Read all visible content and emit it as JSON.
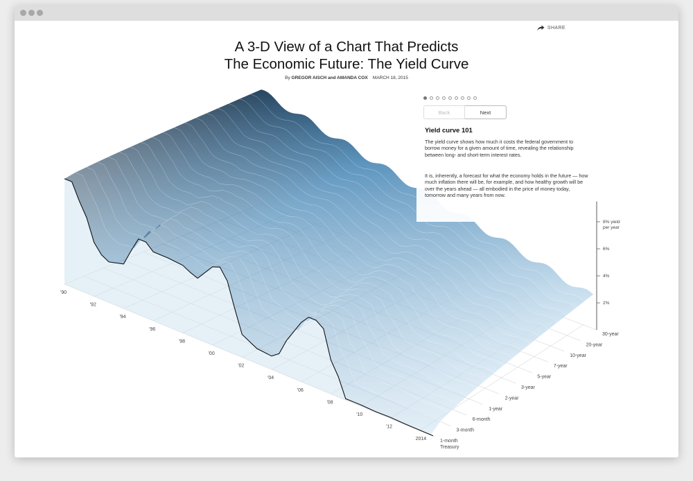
{
  "article": {
    "headline_line1": "A 3-D View of a Chart That Predicts",
    "headline_line2": "The Economic Future: The Yield Curve",
    "byline_prefix": "By",
    "authors": "GREGOR AISCH and AMANDA COX",
    "date": "MARCH 18, 2015",
    "share_label": "SHARE",
    "share_icon": "share-arrow-icon"
  },
  "panel": {
    "step_count": 9,
    "active_step": 0,
    "back_label": "Back",
    "next_label": "Next",
    "title": "Yield curve 101",
    "paragraph1": "The yield curve shows how much it costs the federal government to borrow money for a given amount of time, revealing the relationship between long- and short-term interest rates.",
    "paragraph2": "It is, inherently, a forecast for what the economy holds in the future — how much inflation there will be, for example, and how healthy growth will be over the years ahead — all embodied in the price of money today, tomorrow and many years from now."
  },
  "chart_data": {
    "type": "area",
    "projection": "3d-surface",
    "x_tick_labels": [
      "'90",
      "'92",
      "'94",
      "'96",
      "'98",
      "'00",
      "'02",
      "'04",
      "'06",
      "'08",
      "'10",
      "'12",
      "2014"
    ],
    "maturity_labels": [
      "1-month Treasury",
      "3-month",
      "6-month",
      "1-year",
      "2-year",
      "3-year",
      "5-year",
      "7-year",
      "10-year",
      "20-year",
      "30-year"
    ],
    "y_tick_labels": [
      "2%",
      "4%",
      "6%",
      "8% yield per year"
    ],
    "y_ticks": [
      2,
      4,
      6,
      8
    ],
    "ylim": [
      0,
      9
    ],
    "colors": {
      "surface_top": "#24425c",
      "surface_mid": "#5a93bd",
      "surface_light": "#cfe3f1",
      "short_rate_line": "#111111",
      "grid": "#cccccc"
    },
    "short_rate_series": {
      "name": "1-month Treasury",
      "x": [
        1990.0,
        1990.5,
        1991.0,
        1991.5,
        1992.0,
        1992.5,
        1993.0,
        1994.0,
        1994.5,
        1995.0,
        1995.5,
        1996.0,
        1997.0,
        1998.0,
        1998.5,
        1999.0,
        2000.0,
        2000.5,
        2001.0,
        2001.5,
        2002.0,
        2003.0,
        2004.0,
        2004.5,
        2005.0,
        2006.0,
        2006.5,
        2007.0,
        2007.5,
        2008.0,
        2008.5,
        2009.0,
        2010.0,
        2011.0,
        2012.0,
        2013.0,
        2014.0,
        2014.9
      ],
      "values": [
        7.8,
        7.8,
        6.6,
        5.6,
        4.0,
        3.3,
        3.0,
        3.3,
        4.5,
        5.6,
        5.6,
        5.1,
        5.1,
        5.0,
        4.7,
        4.5,
        5.8,
        6.0,
        5.2,
        3.4,
        1.7,
        1.1,
        1.0,
        1.4,
        2.6,
        4.4,
        5.0,
        5.0,
        4.6,
        2.5,
        1.5,
        0.1,
        0.1,
        0.05,
        0.08,
        0.04,
        0.03,
        0.02
      ]
    }
  }
}
